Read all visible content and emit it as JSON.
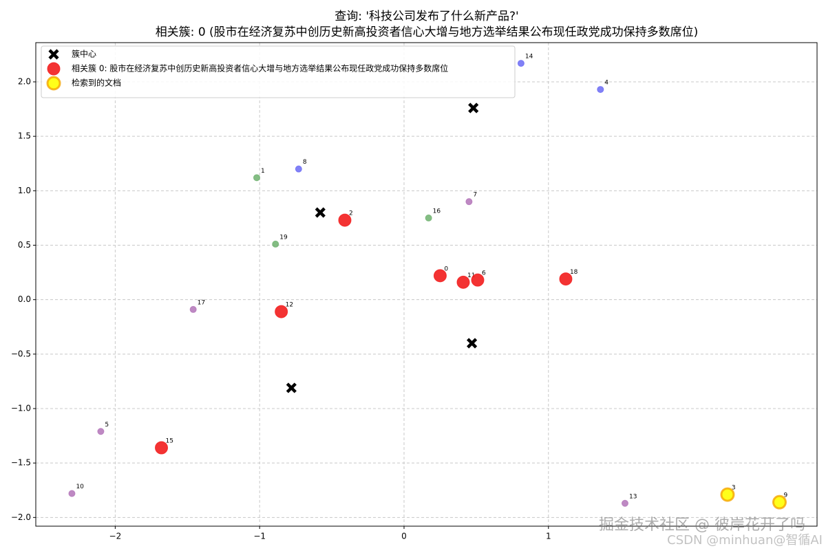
{
  "chart_data": {
    "type": "scatter",
    "title": "查询: '科技公司发布了什么新产品?'",
    "subtitle": "相关簇: 0 (股市在经济复苏中创历史新高投资者信心大增与地方选举结果公布现任政党成功保持多数席位)",
    "xlim": [
      -2.55,
      2.86
    ],
    "ylim": [
      -2.08,
      2.36
    ],
    "xticks": [
      {
        "value": -2,
        "label": "−2"
      },
      {
        "value": -1,
        "label": "−1"
      },
      0,
      1
    ],
    "yticks": [
      {
        "value": 2,
        "label": "2.0"
      },
      {
        "value": 1.5,
        "label": "1.5"
      },
      {
        "value": 1,
        "label": "1.0"
      },
      {
        "value": 0.5,
        "label": "0.5"
      },
      {
        "value": 0,
        "label": "0.0"
      },
      {
        "value": -0.5,
        "label": "−0.5"
      },
      {
        "value": -1,
        "label": "−1.0"
      },
      {
        "value": -1.5,
        "label": "−1.5"
      },
      {
        "value": -2,
        "label": "−2.0"
      }
    ],
    "grid": true,
    "legend": "upper left",
    "series": [
      {
        "name": "簇中心",
        "color": "#000000",
        "marker": "x",
        "x": [
          0.48,
          -0.58,
          0.47,
          -0.78
        ],
        "y": [
          1.76,
          0.8,
          -0.4,
          -0.81
        ]
      },
      {
        "color": "#6b6bf5",
        "marker": "circle",
        "x": [
          0.81,
          1.36,
          -0.73
        ],
        "y": [
          2.17,
          1.93,
          1.2
        ],
        "labels": [
          "14",
          "4",
          "8"
        ]
      },
      {
        "color": "#6fb26f",
        "marker": "circle",
        "x": [
          -1.02,
          0.17,
          -0.89
        ],
        "y": [
          1.12,
          0.75,
          0.51
        ],
        "labels": [
          "1",
          "16",
          "19"
        ]
      },
      {
        "color": "#b374b9",
        "marker": "circle",
        "x": [
          0.45,
          -1.46,
          -2.1,
          -2.3,
          1.53
        ],
        "y": [
          0.9,
          -0.09,
          -1.21,
          -1.78,
          -1.87
        ],
        "labels": [
          "7",
          "17",
          "5",
          "10",
          "13"
        ]
      },
      {
        "name": "相关簇 0: 股市在经济复苏中创历史新高投资者信心大增与地方选举结果公布现任政党成功保持多数席位",
        "color": "#f21d1d",
        "marker": "circle-large",
        "x": [
          -0.41,
          0.25,
          0.41,
          0.51,
          1.12,
          -0.85,
          -1.68
        ],
        "y": [
          0.73,
          0.22,
          0.16,
          0.18,
          0.19,
          -0.11,
          -1.36
        ],
        "labels": [
          "2",
          "0",
          "11",
          "6",
          "18",
          "12",
          "15"
        ]
      },
      {
        "name": "检索到的文档",
        "color": "#ffff1a",
        "edgecolor": "#f5a500",
        "marker": "circle-large",
        "x": [
          2.24,
          2.6
        ],
        "y": [
          -1.79,
          -1.86
        ],
        "labels": [
          "3",
          "9"
        ]
      }
    ],
    "watermarks": [
      "掘金技术社区 @ 彼岸花开了吗",
      "CSDN @minhuan@智循AI"
    ]
  }
}
